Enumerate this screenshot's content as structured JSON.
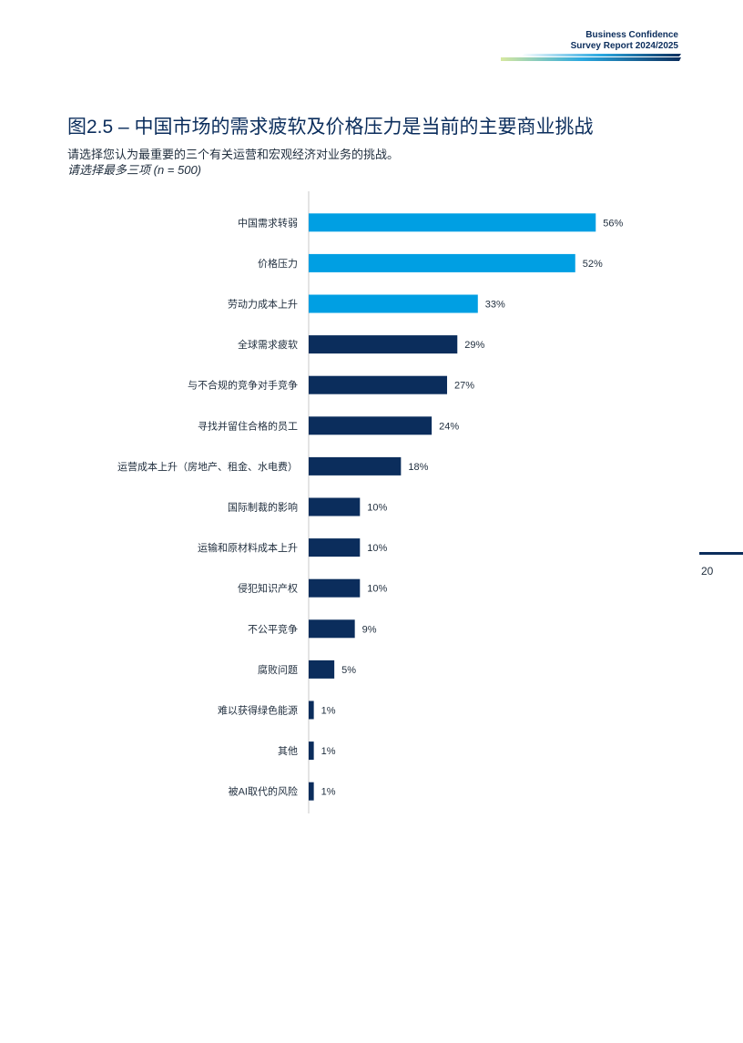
{
  "header": {
    "brand_line1": "Business Confidence",
    "brand_line2": "Survey Report  2024/2025"
  },
  "title": "图2.5 – 中国市场的需求疲软及价格压力是当前的主要商业挑战",
  "subtitle": "请选择您认为最重要的三个有关运营和宏观经济对业务的挑战。",
  "note": "请选择最多三项 (n = 500)",
  "page_number": "20",
  "colors": {
    "highlight": "#009fe3",
    "standard": "#0b2d5c",
    "axis": "#c8c8c8"
  },
  "chart_data": {
    "type": "bar",
    "orientation": "horizontal",
    "categories": [
      "中国需求转弱",
      "价格压力",
      "劳动力成本上升",
      "全球需求疲软",
      "与不合规的竞争对手竞争",
      "寻找并留住合格的员工",
      "运营成本上升（房地产、租金、水电费）",
      "国际制裁的影响",
      "运输和原材料成本上升",
      "侵犯知识产权",
      "不公平竞争",
      "腐败问题",
      "难以获得绿色能源",
      "其他",
      "被AI取代的风险"
    ],
    "values": [
      56,
      52,
      33,
      29,
      27,
      24,
      18,
      10,
      10,
      10,
      9,
      5,
      1,
      1,
      1
    ],
    "value_labels": [
      "56%",
      "52%",
      "33%",
      "29%",
      "27%",
      "24%",
      "18%",
      "10%",
      "10%",
      "10%",
      "9%",
      "5%",
      "1%",
      "1%",
      "1%"
    ],
    "highlighted": [
      true,
      true,
      true,
      false,
      false,
      false,
      false,
      false,
      false,
      false,
      false,
      false,
      false,
      false,
      false
    ],
    "unit": "%",
    "grid": false
  }
}
